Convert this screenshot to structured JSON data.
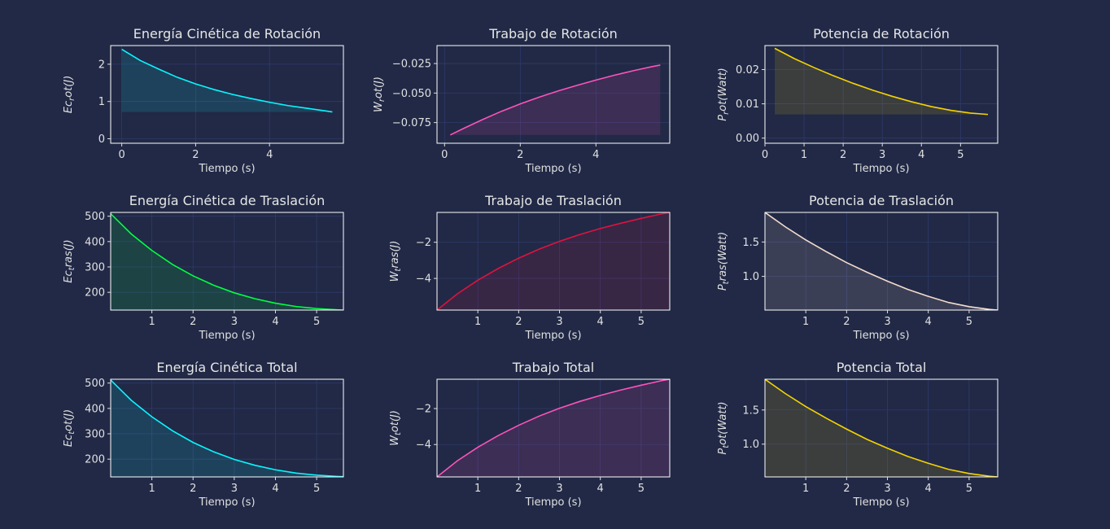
{
  "colors": {
    "background": "#212946",
    "grid": "#2f3a6a",
    "text": "#e0e0e0",
    "cyan": "#08F7FE",
    "pink": "#FE53BB",
    "yellow": "#F5D300",
    "green": "#00ff41",
    "red": "#e0123f",
    "peach": "#f3dccd"
  },
  "chart_data": [
    {
      "type": "area",
      "title": "Energía Cinética de Rotación",
      "xlabel": "Tiempo (s)",
      "ylabel": "Ec_rot(J)",
      "color": "#08F7FE",
      "x": [
        0.0,
        0.5,
        1.0,
        1.5,
        2.0,
        2.5,
        3.0,
        3.5,
        4.0,
        4.5,
        5.0,
        5.5,
        5.7
      ],
      "y": [
        2.4,
        2.1,
        1.87,
        1.65,
        1.47,
        1.32,
        1.19,
        1.08,
        0.98,
        0.89,
        0.82,
        0.75,
        0.72
      ],
      "xlim": [
        -0.3,
        6.0
      ],
      "ylim": [
        -0.12,
        2.5
      ],
      "xticks": [
        0,
        2,
        4
      ],
      "yticks": [
        0,
        1,
        2
      ]
    },
    {
      "type": "area",
      "title": "Trabajo de Rotación",
      "xlabel": "Tiempo (s)",
      "ylabel": "W_rot(J)",
      "color": "#FE53BB",
      "x": [
        0.15,
        0.5,
        1.0,
        1.5,
        2.0,
        2.5,
        3.0,
        3.5,
        4.0,
        4.5,
        5.0,
        5.5,
        5.7
      ],
      "y": [
        -0.0855,
        -0.08,
        -0.0725,
        -0.0655,
        -0.0592,
        -0.0535,
        -0.0482,
        -0.0435,
        -0.039,
        -0.0348,
        -0.031,
        -0.0275,
        -0.0263
      ],
      "xlim": [
        -0.2,
        5.95
      ],
      "ylim": [
        -0.0925,
        -0.0098
      ],
      "xticks": [
        0,
        2,
        4
      ],
      "yticks": [
        -0.075,
        -0.05,
        -0.025
      ],
      "yticklabels": [
        "−0.075",
        "−0.050",
        "−0.025"
      ]
    },
    {
      "type": "area",
      "title": "Potencia de Rotación",
      "xlabel": "Tiempo (s)",
      "ylabel": "P_rot(Watt)",
      "color": "#F5D300",
      "x": [
        0.25,
        0.75,
        1.25,
        1.75,
        2.25,
        2.75,
        3.25,
        3.75,
        4.25,
        4.75,
        5.25,
        5.7
      ],
      "y": [
        0.0262,
        0.0232,
        0.0206,
        0.0182,
        0.016,
        0.014,
        0.0122,
        0.0106,
        0.0092,
        0.0081,
        0.0073,
        0.0069
      ],
      "xlim": [
        0.0,
        5.95
      ],
      "ylim": [
        -0.0015,
        0.027
      ],
      "xticks": [
        0,
        1,
        2,
        3,
        4,
        5
      ],
      "yticks": [
        0.0,
        0.01,
        0.02
      ],
      "yticklabels": [
        "0.00",
        "0.01",
        "0.02"
      ]
    },
    {
      "type": "area",
      "title": "Energía Cinética de Traslación",
      "xlabel": "Tiempo (s)",
      "ylabel": "Ec_tras(J)",
      "color": "#00ff41",
      "x": [
        0.0,
        0.5,
        1.0,
        1.5,
        2.0,
        2.5,
        3.0,
        3.5,
        4.0,
        4.5,
        5.0,
        5.5,
        5.65
      ],
      "y": [
        510,
        430,
        365,
        310,
        265,
        228,
        198,
        175,
        157,
        144,
        136,
        131,
        130
      ],
      "xlim": [
        0.0,
        5.65
      ],
      "ylim": [
        130,
        515
      ],
      "xticks": [
        1,
        2,
        3,
        4,
        5
      ],
      "yticks": [
        200,
        300,
        400,
        500
      ]
    },
    {
      "type": "area",
      "title": "Trabajo de Traslación",
      "xlabel": "Tiempo (s)",
      "ylabel": "W_tras(J)",
      "color": "#e0123f",
      "x": [
        0.0,
        0.5,
        1.0,
        1.5,
        2.0,
        2.5,
        3.0,
        3.5,
        4.0,
        4.5,
        5.0,
        5.5,
        5.7
      ],
      "y": [
        -5.75,
        -4.85,
        -4.1,
        -3.45,
        -2.88,
        -2.38,
        -1.95,
        -1.57,
        -1.24,
        -0.95,
        -0.68,
        -0.43,
        -0.35
      ],
      "xlim": [
        0.0,
        5.7
      ],
      "ylim": [
        -5.75,
        -0.35
      ],
      "xticks": [
        1,
        2,
        3,
        4,
        5
      ],
      "yticks": [
        -4,
        -2
      ],
      "yticklabels": [
        "−4",
        "−2"
      ]
    },
    {
      "type": "area",
      "title": "Potencia de Traslación",
      "xlabel": "Tiempo (s)",
      "ylabel": "P_tras(Watt)",
      "color": "#f3dccd",
      "x": [
        0.0,
        0.5,
        1.0,
        1.5,
        2.0,
        2.5,
        3.0,
        3.5,
        4.0,
        4.5,
        5.0,
        5.5,
        5.7
      ],
      "y": [
        1.93,
        1.72,
        1.53,
        1.36,
        1.2,
        1.06,
        0.93,
        0.81,
        0.71,
        0.62,
        0.56,
        0.52,
        0.51
      ],
      "xlim": [
        0.0,
        5.7
      ],
      "ylim": [
        0.51,
        1.93
      ],
      "xticks": [
        1,
        2,
        3,
        4,
        5
      ],
      "yticks": [
        1.0,
        1.5
      ],
      "yticklabels": [
        "1.0",
        "1.5"
      ]
    },
    {
      "type": "area",
      "title": "Energía Cinética Total",
      "xlabel": "Tiempo (s)",
      "ylabel": "Ec_tot(J)",
      "color": "#08F7FE",
      "x": [
        0.0,
        0.5,
        1.0,
        1.5,
        2.0,
        2.5,
        3.0,
        3.5,
        4.0,
        4.5,
        5.0,
        5.5,
        5.65
      ],
      "y": [
        512,
        432,
        367,
        312,
        266,
        229,
        199,
        176,
        158,
        145,
        137,
        132,
        131
      ],
      "xlim": [
        0.0,
        5.65
      ],
      "ylim": [
        130,
        515
      ],
      "xticks": [
        1,
        2,
        3,
        4,
        5
      ],
      "yticks": [
        200,
        300,
        400,
        500
      ]
    },
    {
      "type": "area",
      "title": "Trabajo Total",
      "xlabel": "Tiempo (s)",
      "ylabel": "W_tot(J)",
      "color": "#FE53BB",
      "x": [
        0.0,
        0.5,
        1.0,
        1.5,
        2.0,
        2.5,
        3.0,
        3.5,
        4.0,
        4.5,
        5.0,
        5.5,
        5.7
      ],
      "y": [
        -5.8,
        -4.9,
        -4.15,
        -3.5,
        -2.93,
        -2.42,
        -1.98,
        -1.6,
        -1.27,
        -0.97,
        -0.7,
        -0.45,
        -0.37
      ],
      "xlim": [
        0.0,
        5.7
      ],
      "ylim": [
        -5.8,
        -0.37
      ],
      "xticks": [
        1,
        2,
        3,
        4,
        5
      ],
      "yticks": [
        -4,
        -2
      ],
      "yticklabels": [
        "−4",
        "−2"
      ]
    },
    {
      "type": "area",
      "title": "Potencia Total",
      "xlabel": "Tiempo (s)",
      "ylabel": "P_tot(Watt)",
      "color": "#F5D300",
      "x": [
        0.0,
        0.5,
        1.0,
        1.5,
        2.0,
        2.5,
        3.0,
        3.5,
        4.0,
        4.5,
        5.0,
        5.5,
        5.7
      ],
      "y": [
        1.95,
        1.74,
        1.55,
        1.38,
        1.22,
        1.07,
        0.94,
        0.82,
        0.72,
        0.63,
        0.57,
        0.53,
        0.52
      ],
      "xlim": [
        0.0,
        5.7
      ],
      "ylim": [
        0.52,
        1.95
      ],
      "xticks": [
        1,
        2,
        3,
        4,
        5
      ],
      "yticks": [
        1.0,
        1.5
      ],
      "yticklabels": [
        "1.0",
        "1.5"
      ]
    }
  ]
}
